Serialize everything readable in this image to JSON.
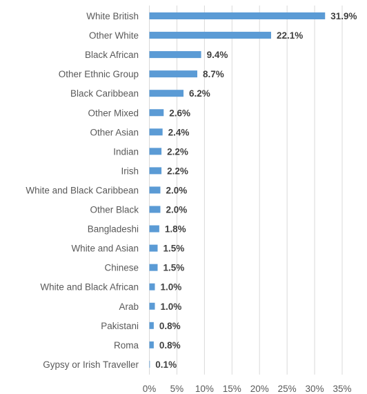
{
  "chart_data": {
    "type": "bar",
    "orientation": "horizontal",
    "title": "",
    "xlabel": "",
    "ylabel": "",
    "xlim": [
      0,
      35
    ],
    "x_ticks": [
      0,
      5,
      10,
      15,
      20,
      25,
      30,
      35
    ],
    "x_tick_labels": [
      "0%",
      "5%",
      "10%",
      "15%",
      "20%",
      "25%",
      "30%",
      "35%"
    ],
    "grid": true,
    "bar_color": "#5b9bd5",
    "categories": [
      "White British",
      "Other White",
      "Black African",
      "Other Ethnic Group",
      "Black Caribbean",
      "Other Mixed",
      "Other Asian",
      "Indian",
      "Irish",
      "White and Black Caribbean",
      "Other Black",
      "Bangladeshi",
      "White and Asian",
      "Chinese",
      "White and Black African",
      "Arab",
      "Pakistani",
      "Roma",
      "Gypsy or Irish Traveller"
    ],
    "values": [
      31.9,
      22.1,
      9.4,
      8.7,
      6.2,
      2.6,
      2.4,
      2.2,
      2.2,
      2.0,
      2.0,
      1.8,
      1.5,
      1.5,
      1.0,
      1.0,
      0.8,
      0.8,
      0.1
    ],
    "data_labels": [
      "31.9%",
      "22.1%",
      "9.4%",
      "8.7%",
      "6.2%",
      "2.6%",
      "2.4%",
      "2.2%",
      "2.2%",
      "2.0%",
      "2.0%",
      "1.8%",
      "1.5%",
      "1.5%",
      "1.0%",
      "1.0%",
      "0.8%",
      "0.8%",
      "0.1%"
    ]
  }
}
